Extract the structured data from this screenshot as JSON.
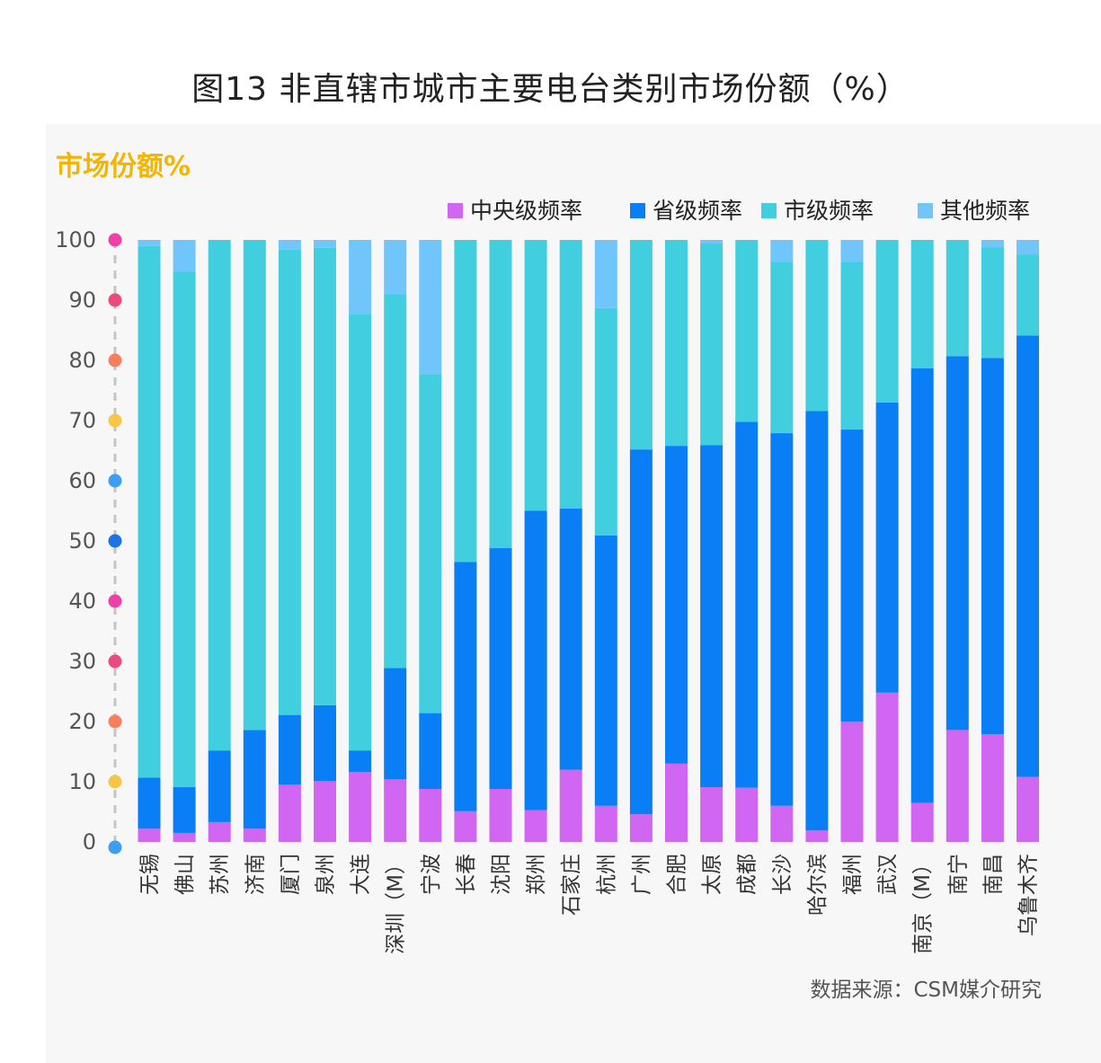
{
  "title": "图13 非直辖市城市主要电台类别市场份额（%）",
  "ylabel": "市场份额%",
  "source": "数据来源：CSM媒介研究",
  "chart_data": {
    "type": "bar",
    "stacked": true,
    "ylim": [
      0,
      100
    ],
    "yticks": [
      0,
      10,
      20,
      30,
      40,
      50,
      60,
      70,
      80,
      90,
      100
    ],
    "legend_position": "top-right",
    "categories": [
      "无锡",
      "佛山",
      "苏州",
      "济南",
      "厦门",
      "泉州",
      "大连",
      "深圳（M）",
      "宁波",
      "长春",
      "沈阳",
      "郑州",
      "石家庄",
      "杭州",
      "广州",
      "合肥",
      "太原",
      "成都",
      "长沙",
      "哈尔滨",
      "福州",
      "武汉",
      "南京（M）",
      "南宁",
      "南昌",
      "乌鲁木齐"
    ],
    "series": [
      {
        "name": "中央级频率",
        "color": "#d066f2",
        "values": [
          2.2,
          1.5,
          3.3,
          2.2,
          9.5,
          10.1,
          11.6,
          10.4,
          8.8,
          5.1,
          8.8,
          5.3,
          12.0,
          6.0,
          4.6,
          13.0,
          9.1,
          9.0,
          6.0,
          1.9,
          20.0,
          24.8,
          6.5,
          18.6,
          17.9,
          10.8
        ]
      },
      {
        "name": "省级频率",
        "color": "#0a7ef5",
        "values": [
          8.5,
          7.6,
          11.9,
          16.4,
          11.6,
          12.6,
          3.6,
          18.5,
          12.6,
          41.4,
          40.0,
          49.7,
          43.4,
          44.9,
          60.6,
          52.8,
          56.8,
          60.8,
          61.9,
          69.7,
          48.5,
          48.2,
          72.2,
          62.1,
          62.5,
          73.3
        ]
      },
      {
        "name": "市级频率",
        "color": "#41cfe0",
        "values": [
          88.3,
          85.6,
          84.8,
          81.4,
          77.3,
          76.0,
          72.5,
          62.1,
          56.3,
          53.5,
          51.2,
          45.0,
          44.6,
          37.8,
          34.8,
          34.2,
          33.5,
          30.2,
          28.5,
          28.4,
          27.9,
          27.0,
          21.3,
          19.3,
          18.4,
          13.5
        ]
      },
      {
        "name": "其他频率",
        "color": "#70c5fa",
        "values": [
          1.0,
          5.3,
          0,
          0,
          1.6,
          1.3,
          12.3,
          9.0,
          22.3,
          0,
          0,
          0,
          0,
          11.3,
          0,
          0,
          0.6,
          0,
          3.6,
          0,
          3.6,
          0,
          0,
          0,
          1.2,
          2.4
        ]
      }
    ]
  }
}
